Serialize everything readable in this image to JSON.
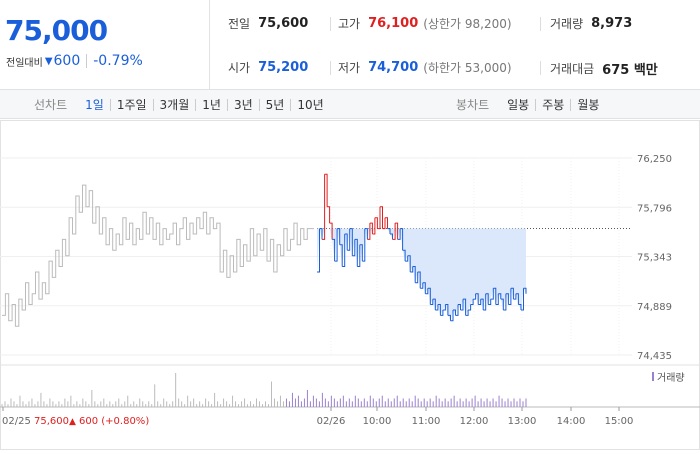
{
  "quote": {
    "price": "75,000",
    "change_label": "전일대비",
    "change_arrow": "▼",
    "change_value": "600",
    "change_pct": "-0.79%"
  },
  "stats": {
    "prev_close": {
      "label": "전일",
      "value": "75,600"
    },
    "high": {
      "label": "고가",
      "value": "76,100",
      "sub": "(상한가 98,200)"
    },
    "volume": {
      "label": "거래량",
      "value": "8,973"
    },
    "open": {
      "label": "시가",
      "value": "75,200"
    },
    "low": {
      "label": "저가",
      "value": "74,700",
      "sub": "(하한가 53,000)"
    },
    "amount": {
      "label": "거래대금",
      "value": "675 백만"
    }
  },
  "tabs": {
    "line_title": "선차트",
    "line_items": [
      "1일",
      "1주일",
      "3개월",
      "1년",
      "3년",
      "5년",
      "10년"
    ],
    "line_active": 0,
    "candle_title": "봉차트",
    "candle_items": [
      "일봉",
      "주봉",
      "월봉"
    ]
  },
  "colors": {
    "up": "#e02020",
    "down": "#1a5fd9",
    "prev_day": "#bbbbbb"
  },
  "chart_data": {
    "type": "line",
    "y_ticks": [
      "76,250",
      "75,796",
      "75,343",
      "74,889",
      "74,435"
    ],
    "ylim": [
      74435,
      76250
    ],
    "reference_price": 75600,
    "x_ticks": [
      "02/26",
      "10:00",
      "11:00",
      "12:00",
      "13:00",
      "14:00",
      "15:00"
    ],
    "prev_day_label": "02/25",
    "prev_day_close": "75,600",
    "prev_day_change_arrow": "▲",
    "prev_day_change": "600 (+0.80%)",
    "volume_legend": "거래량",
    "series": [
      {
        "segment": "previous-day",
        "values": [
          74800,
          75000,
          74750,
          74900,
          74700,
          74950,
          74850,
          75100,
          74900,
          75000,
          75200,
          74950,
          75100,
          75000,
          75300,
          75150,
          75400,
          75250,
          75500,
          75350,
          75700,
          75550,
          75900,
          75750,
          76000,
          75800,
          75950,
          75650,
          75800,
          75550,
          75700,
          75450,
          75600,
          75400,
          75550,
          75450,
          75700,
          75500,
          75650,
          75450,
          75600,
          75500,
          75750,
          75550,
          75700,
          75500,
          75650,
          75450,
          75600,
          75500,
          75550,
          75650,
          75450,
          75600,
          75700,
          75500,
          75650,
          75550,
          75700,
          75600,
          75750,
          75550,
          75700,
          75600,
          75650,
          75200,
          75400,
          75150,
          75350,
          75200,
          75500,
          75250,
          75450,
          75300,
          75600,
          75350,
          75550,
          75400,
          75600,
          75300,
          75500,
          75200,
          75450,
          75350,
          75600,
          75400,
          75500,
          75650,
          75450,
          75600,
          75500,
          75600,
          75600,
          75600
        ]
      },
      {
        "segment": "today",
        "values": [
          75200,
          75600,
          75500,
          76100,
          75800,
          75650,
          75500,
          75300,
          75600,
          75450,
          75250,
          75550,
          75400,
          75600,
          75350,
          75500,
          75250,
          75450,
          75300,
          75600,
          75500,
          75650,
          75550,
          75700,
          75600,
          75800,
          75600,
          75700,
          75600,
          75550,
          75500,
          75650,
          75500,
          75600,
          75400,
          75300,
          75350,
          75200,
          75250,
          75100,
          75200,
          75050,
          75100,
          75000,
          75050,
          74900,
          74950,
          74850,
          74900,
          74800,
          74850,
          74900,
          74800,
          74750,
          74850,
          74800,
          74900,
          74850,
          74950,
          74800,
          74850,
          74900,
          74950,
          75000,
          74900,
          74950,
          74850,
          75000,
          74900,
          74950,
          75050,
          74900,
          75000,
          74950,
          74850,
          75000,
          74900,
          75050,
          74950,
          75000,
          74900,
          74850,
          75050,
          75000
        ]
      }
    ],
    "volumes": [
      1,
      2,
      1,
      3,
      2,
      1,
      4,
      2,
      1,
      2,
      3,
      1,
      2,
      5,
      2,
      1,
      3,
      2,
      1,
      2,
      1,
      3,
      2,
      4,
      1,
      2,
      1,
      3,
      2,
      1,
      6,
      2,
      1,
      2,
      3,
      1,
      2,
      1,
      2,
      3,
      1,
      2,
      4,
      1,
      2,
      1,
      3,
      2,
      1,
      2,
      1,
      8,
      2,
      1,
      3,
      2,
      1,
      2,
      12,
      3,
      2,
      1,
      4,
      2,
      3,
      1,
      2,
      1,
      3,
      2,
      1,
      5,
      2,
      1,
      3,
      2,
      1,
      4,
      2,
      1,
      2,
      3,
      1,
      2,
      1,
      3,
      2,
      1,
      2,
      1,
      9,
      3,
      2,
      4,
      2,
      3,
      2,
      5,
      3,
      4,
      2,
      3,
      6,
      2,
      4,
      3,
      2,
      5,
      3,
      2,
      4,
      3,
      2,
      3,
      4,
      2,
      3,
      2,
      4,
      3,
      2,
      3,
      2,
      4,
      3,
      2,
      3,
      4,
      2,
      3,
      2,
      3,
      4,
      2,
      3,
      2,
      3,
      2,
      4,
      3,
      2,
      3,
      2,
      3,
      2,
      4,
      3,
      2,
      3,
      2,
      3,
      4,
      2,
      3,
      2,
      3,
      2,
      3,
      4,
      2,
      3,
      2,
      3,
      2,
      3,
      2,
      4,
      3,
      2,
      3,
      2,
      3,
      2,
      3,
      2,
      3
    ]
  }
}
